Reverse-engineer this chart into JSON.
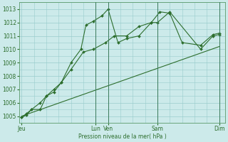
{
  "background_color": "#cceaea",
  "grid_color": "#99cccc",
  "line_color": "#2d6e2d",
  "xlabel": "Pression niveau de la mer( hPa )",
  "ylim": [
    1004.5,
    1013.5
  ],
  "yticks": [
    1005,
    1006,
    1007,
    1008,
    1009,
    1010,
    1011,
    1012,
    1013
  ],
  "xtick_labels": [
    "Jeu",
    "Lun",
    "Ven",
    "Sam",
    "Dim"
  ],
  "xtick_positions": [
    0,
    6,
    7,
    11,
    16
  ],
  "vline_positions": [
    6,
    7,
    11,
    16
  ],
  "xlim": [
    -0.2,
    16.5
  ],
  "series1_x": [
    0,
    0.4,
    0.8,
    1.5,
    2.0,
    2.6,
    3.2,
    4.0,
    4.8,
    5.2,
    5.8,
    6.5,
    7.0,
    7.8,
    8.5,
    9.5,
    10.5,
    11.0,
    12.0,
    14.5,
    15.5,
    16.0
  ],
  "series1_y": [
    1004.9,
    1005.1,
    1005.5,
    1006.0,
    1006.5,
    1007.0,
    1007.5,
    1009.0,
    1010.0,
    1011.8,
    1012.1,
    1012.5,
    1013.0,
    1010.5,
    1010.8,
    1011.0,
    1012.0,
    1012.0,
    1012.8,
    1010.0,
    1011.0,
    1011.1
  ],
  "series2_x": [
    0,
    0.4,
    0.8,
    1.5,
    2.0,
    2.6,
    3.2,
    4.0,
    5.0,
    5.8,
    6.8,
    7.5,
    8.5,
    9.5,
    10.5,
    11.2,
    12.0,
    13.0,
    14.5,
    15.5,
    16.0
  ],
  "series2_y": [
    1004.9,
    1005.2,
    1005.5,
    1005.5,
    1006.5,
    1006.8,
    1007.5,
    1008.5,
    1009.8,
    1010.0,
    1010.5,
    1011.0,
    1011.0,
    1011.7,
    1012.0,
    1012.8,
    1012.7,
    1010.5,
    1010.3,
    1011.1,
    1011.2
  ],
  "series3_x": [
    0,
    16.0
  ],
  "series3_y": [
    1005.0,
    1010.2
  ]
}
